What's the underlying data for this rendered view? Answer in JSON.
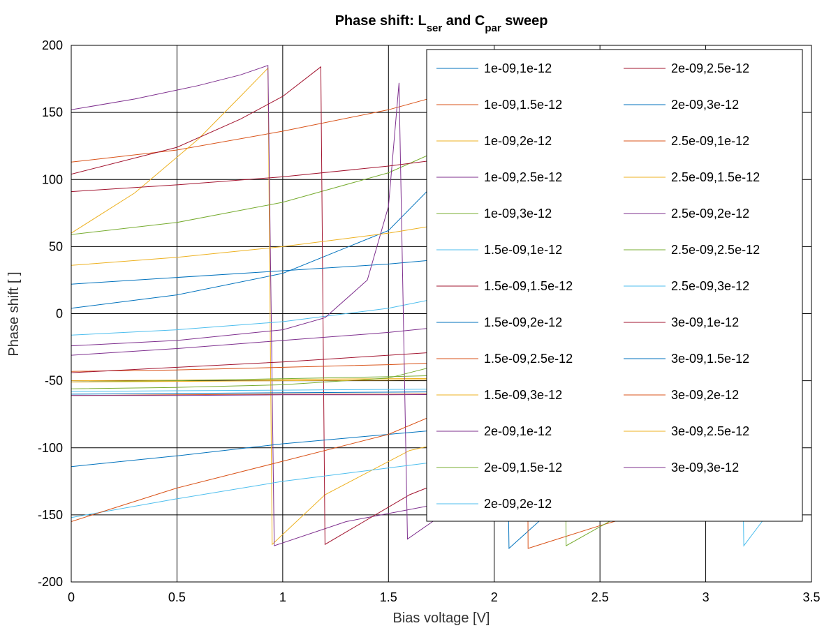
{
  "chart_data": {
    "type": "line",
    "title": {
      "main": "Phase shift: ",
      "l_symbol": "L",
      "l_sub": "ser",
      "joiner": " and ",
      "c_symbol": "C",
      "c_sub": "par",
      "tail": " sweep"
    },
    "xlabel": "Bias voltage [V]",
    "ylabel": "Phase shift [ ]",
    "xlim": [
      0,
      3.5
    ],
    "ylim": [
      -200,
      200
    ],
    "xticks": [
      0,
      0.5,
      1,
      1.5,
      2,
      2.5,
      3,
      3.5
    ],
    "yticks": [
      -200,
      -150,
      -100,
      -50,
      0,
      50,
      100,
      150,
      200
    ],
    "xtick_labels": [
      "0",
      "0.5",
      "1",
      "1.5",
      "2",
      "2.5",
      "3",
      "3.5"
    ],
    "ytick_labels": [
      "-200",
      "-150",
      "-100",
      "-50",
      "0",
      "50",
      "100",
      "150",
      "200"
    ],
    "grid": true,
    "legend_position": "top-right",
    "series": [
      {
        "name": "1e-09,1e-12",
        "color": "#0072bd",
        "x": [
          0,
          0.5,
          1.0,
          1.5,
          1.8,
          2.0,
          2.04,
          2.07,
          2.4,
          2.8,
          3.3
        ],
        "y": [
          4,
          14,
          30,
          62,
          110,
          160,
          178,
          -175,
          -128,
          -100,
          -82
        ]
      },
      {
        "name": "1e-09,1.5e-12",
        "color": "#d95319",
        "x": [
          0,
          0.5,
          1.0,
          1.5,
          1.8,
          2.1,
          2.15,
          2.16,
          2.5,
          2.9,
          3.3
        ],
        "y": [
          113,
          122,
          136,
          152,
          165,
          178,
          183,
          -175,
          -158,
          -140,
          -128
        ]
      },
      {
        "name": "1e-09,2e-12",
        "color": "#edb120",
        "x": [
          0,
          0.3,
          0.6,
          0.8,
          0.93,
          0.95,
          1.2,
          1.6,
          2.0,
          2.5,
          3.3
        ],
        "y": [
          60,
          90,
          130,
          162,
          183,
          -172,
          -135,
          -102,
          -88,
          -78,
          -68
        ]
      },
      {
        "name": "1e-09,2.5e-12",
        "color": "#7e2f8e",
        "x": [
          0,
          0.3,
          0.6,
          0.8,
          0.93,
          0.96,
          1.3,
          1.8,
          2.3,
          2.8,
          3.3
        ],
        "y": [
          152,
          160,
          170,
          178,
          185,
          -173,
          -155,
          -140,
          -125,
          -110,
          -97
        ]
      },
      {
        "name": "1e-09,3e-12",
        "color": "#77ac30",
        "x": [
          0,
          0.5,
          1.0,
          1.5,
          2.0,
          2.2,
          2.32,
          2.34,
          2.6,
          3.0,
          3.3
        ],
        "y": [
          59,
          68,
          83,
          105,
          140,
          160,
          180,
          -173,
          -150,
          -125,
          -108
        ]
      },
      {
        "name": "1.5e-09,1e-12",
        "color": "#4dbeee",
        "x": [
          0,
          0.5,
          1.0,
          1.5,
          2.0,
          2.5,
          2.8,
          3.0,
          3.15,
          3.18,
          3.3
        ],
        "y": [
          -16,
          -12,
          -6,
          4,
          20,
          55,
          90,
          130,
          180,
          -173,
          -148
        ]
      },
      {
        "name": "1.5e-09,1.5e-12",
        "color": "#a2142f",
        "x": [
          0,
          0.5,
          0.8,
          1.0,
          1.18,
          1.2,
          1.6,
          2.0,
          2.5,
          3.0,
          3.3
        ],
        "y": [
          104,
          124,
          145,
          162,
          184,
          -172,
          -135,
          -110,
          -95,
          -85,
          -80
        ]
      },
      {
        "name": "1.5e-09,2e-12",
        "color": "#0072bd",
        "x": [
          0,
          0.5,
          1.0,
          1.5,
          2.0,
          2.5,
          3.0,
          3.3
        ],
        "y": [
          22,
          27,
          32,
          37,
          44,
          53,
          66,
          75
        ]
      },
      {
        "name": "1.5e-09,2.5e-12",
        "color": "#d95319",
        "x": [
          0,
          0.5,
          1.0,
          1.5,
          2.0,
          2.5,
          3.0,
          3.3
        ],
        "y": [
          -43,
          -42,
          -40,
          -38,
          -35,
          -30,
          -22,
          -15
        ]
      },
      {
        "name": "1.5e-09,3e-12",
        "color": "#edb120",
        "x": [
          0,
          0.5,
          1.0,
          1.5,
          2.0,
          2.5,
          3.0,
          3.3
        ],
        "y": [
          -50,
          -49.5,
          -49,
          -48.5,
          -48,
          -47,
          -46,
          -45
        ]
      },
      {
        "name": "2e-09,1e-12",
        "color": "#7e2f8e",
        "x": [
          0,
          0.5,
          1.0,
          1.2,
          1.4,
          1.5,
          1.55,
          1.59,
          1.8,
          2.3,
          2.8,
          3.3
        ],
        "y": [
          -24,
          -20,
          -12,
          -3,
          25,
          80,
          172,
          -168,
          -145,
          -120,
          -108,
          -98
        ]
      },
      {
        "name": "2e-09,1.5e-12",
        "color": "#77ac30",
        "x": [
          0,
          0.5,
          1.0,
          1.5,
          1.8,
          1.9,
          2.0,
          2.1,
          2.2,
          2.6,
          3.0,
          3.3
        ],
        "y": [
          -56,
          -55,
          -53,
          -48,
          -36,
          -32,
          -42,
          -62,
          -75,
          -77,
          -79,
          -80
        ]
      },
      {
        "name": "2e-09,2e-12",
        "color": "#4dbeee",
        "x": [
          0,
          0.5,
          1.0,
          1.5,
          2.0,
          2.5,
          3.0,
          3.3
        ],
        "y": [
          -152,
          -138,
          -125,
          -115,
          -105,
          -96,
          -88,
          -80
        ]
      },
      {
        "name": "2e-09,2.5e-12",
        "color": "#a2142f",
        "x": [
          0,
          0.5,
          1.0,
          1.5,
          2.0,
          2.5,
          3.0,
          3.3
        ],
        "y": [
          91,
          96,
          102,
          110,
          120,
          138,
          162,
          180
        ]
      },
      {
        "name": "2e-09,3e-12",
        "color": "#0072bd",
        "x": [
          0,
          0.5,
          1.0,
          1.5,
          2.0,
          2.5,
          3.0,
          3.3
        ],
        "y": [
          -114,
          -106,
          -97,
          -90,
          -83,
          -78,
          -74,
          -72
        ]
      },
      {
        "name": "2.5e-09,1e-12",
        "color": "#d95319",
        "x": [
          0,
          0.5,
          1.0,
          1.5,
          1.8,
          2.1,
          2.35,
          2.48,
          2.55,
          2.6,
          2.65,
          2.75,
          3.0,
          3.3
        ],
        "y": [
          -155,
          -130,
          -110,
          -90,
          -70,
          -40,
          10,
          21,
          10,
          -50,
          -96,
          -104,
          -90,
          -80
        ]
      },
      {
        "name": "2.5e-09,1.5e-12",
        "color": "#edb120",
        "x": [
          0,
          0.5,
          1.0,
          1.5,
          2.0,
          2.5,
          3.0,
          3.3
        ],
        "y": [
          36,
          42,
          50,
          60,
          73,
          92,
          125,
          161
        ]
      },
      {
        "name": "2.5e-09,2e-12",
        "color": "#7e2f8e",
        "x": [
          0,
          0.5,
          1.0,
          1.5,
          2.0,
          2.5,
          3.0,
          3.3
        ],
        "y": [
          -31,
          -26,
          -20,
          -14,
          -6,
          3,
          14,
          24
        ]
      },
      {
        "name": "2.5e-09,2.5e-12",
        "color": "#77ac30",
        "x": [
          0,
          0.5,
          1.0,
          1.5,
          2.0,
          2.5,
          3.0,
          3.3
        ],
        "y": [
          -51,
          -50,
          -48.5,
          -47,
          -45,
          -43,
          -40,
          -38
        ]
      },
      {
        "name": "2.5e-09,3e-12",
        "color": "#4dbeee",
        "x": [
          0,
          0.5,
          1.0,
          1.5,
          2.0,
          2.5,
          3.0,
          3.3
        ],
        "y": [
          -58,
          -57.5,
          -57,
          -56.5,
          -56,
          -55.5,
          -55,
          -54
        ]
      },
      {
        "name": "3e-09,1e-12",
        "color": "#a2142f",
        "x": [
          0,
          0.5,
          1.0,
          1.5,
          2.0,
          2.5,
          3.0,
          3.3
        ],
        "y": [
          -44,
          -40,
          -36,
          -31,
          -26,
          -21,
          -15,
          -12
        ]
      },
      {
        "name": "3e-09,1.5e-12",
        "color": "#0072bd",
        "x": [
          0,
          0.5,
          1.0,
          1.5,
          2.0,
          2.5,
          3.0,
          3.3
        ],
        "y": [
          -60,
          -59.5,
          -59,
          -58.5,
          -58,
          -57.5,
          -57,
          -56.5
        ]
      },
      {
        "name": "3e-09,2e-12",
        "color": "#d95319",
        "x": [
          0,
          0.5,
          1.0,
          1.5,
          2.0,
          2.5,
          2.9,
          3.3
        ],
        "y": [
          -61,
          -60.5,
          -60,
          -60,
          -59.5,
          -58,
          -44,
          -66
        ]
      },
      {
        "name": "3e-09,2.5e-12",
        "color": "#edb120",
        "x": [
          0,
          0.5,
          1.0,
          1.5,
          2.0,
          2.5,
          2.85,
          3.3
        ],
        "y": [
          -51,
          -50.5,
          -50,
          -49.5,
          -48.5,
          -46,
          -42,
          -68
        ]
      },
      {
        "name": "3e-09,3e-12",
        "color": "#7e2f8e",
        "x": [
          0,
          0.5,
          1.0,
          1.5,
          2.0,
          2.5,
          3.0,
          3.3
        ],
        "y": [
          -61,
          -61,
          -60.5,
          -60.5,
          -60,
          -60,
          -59.5,
          -59
        ]
      }
    ]
  }
}
